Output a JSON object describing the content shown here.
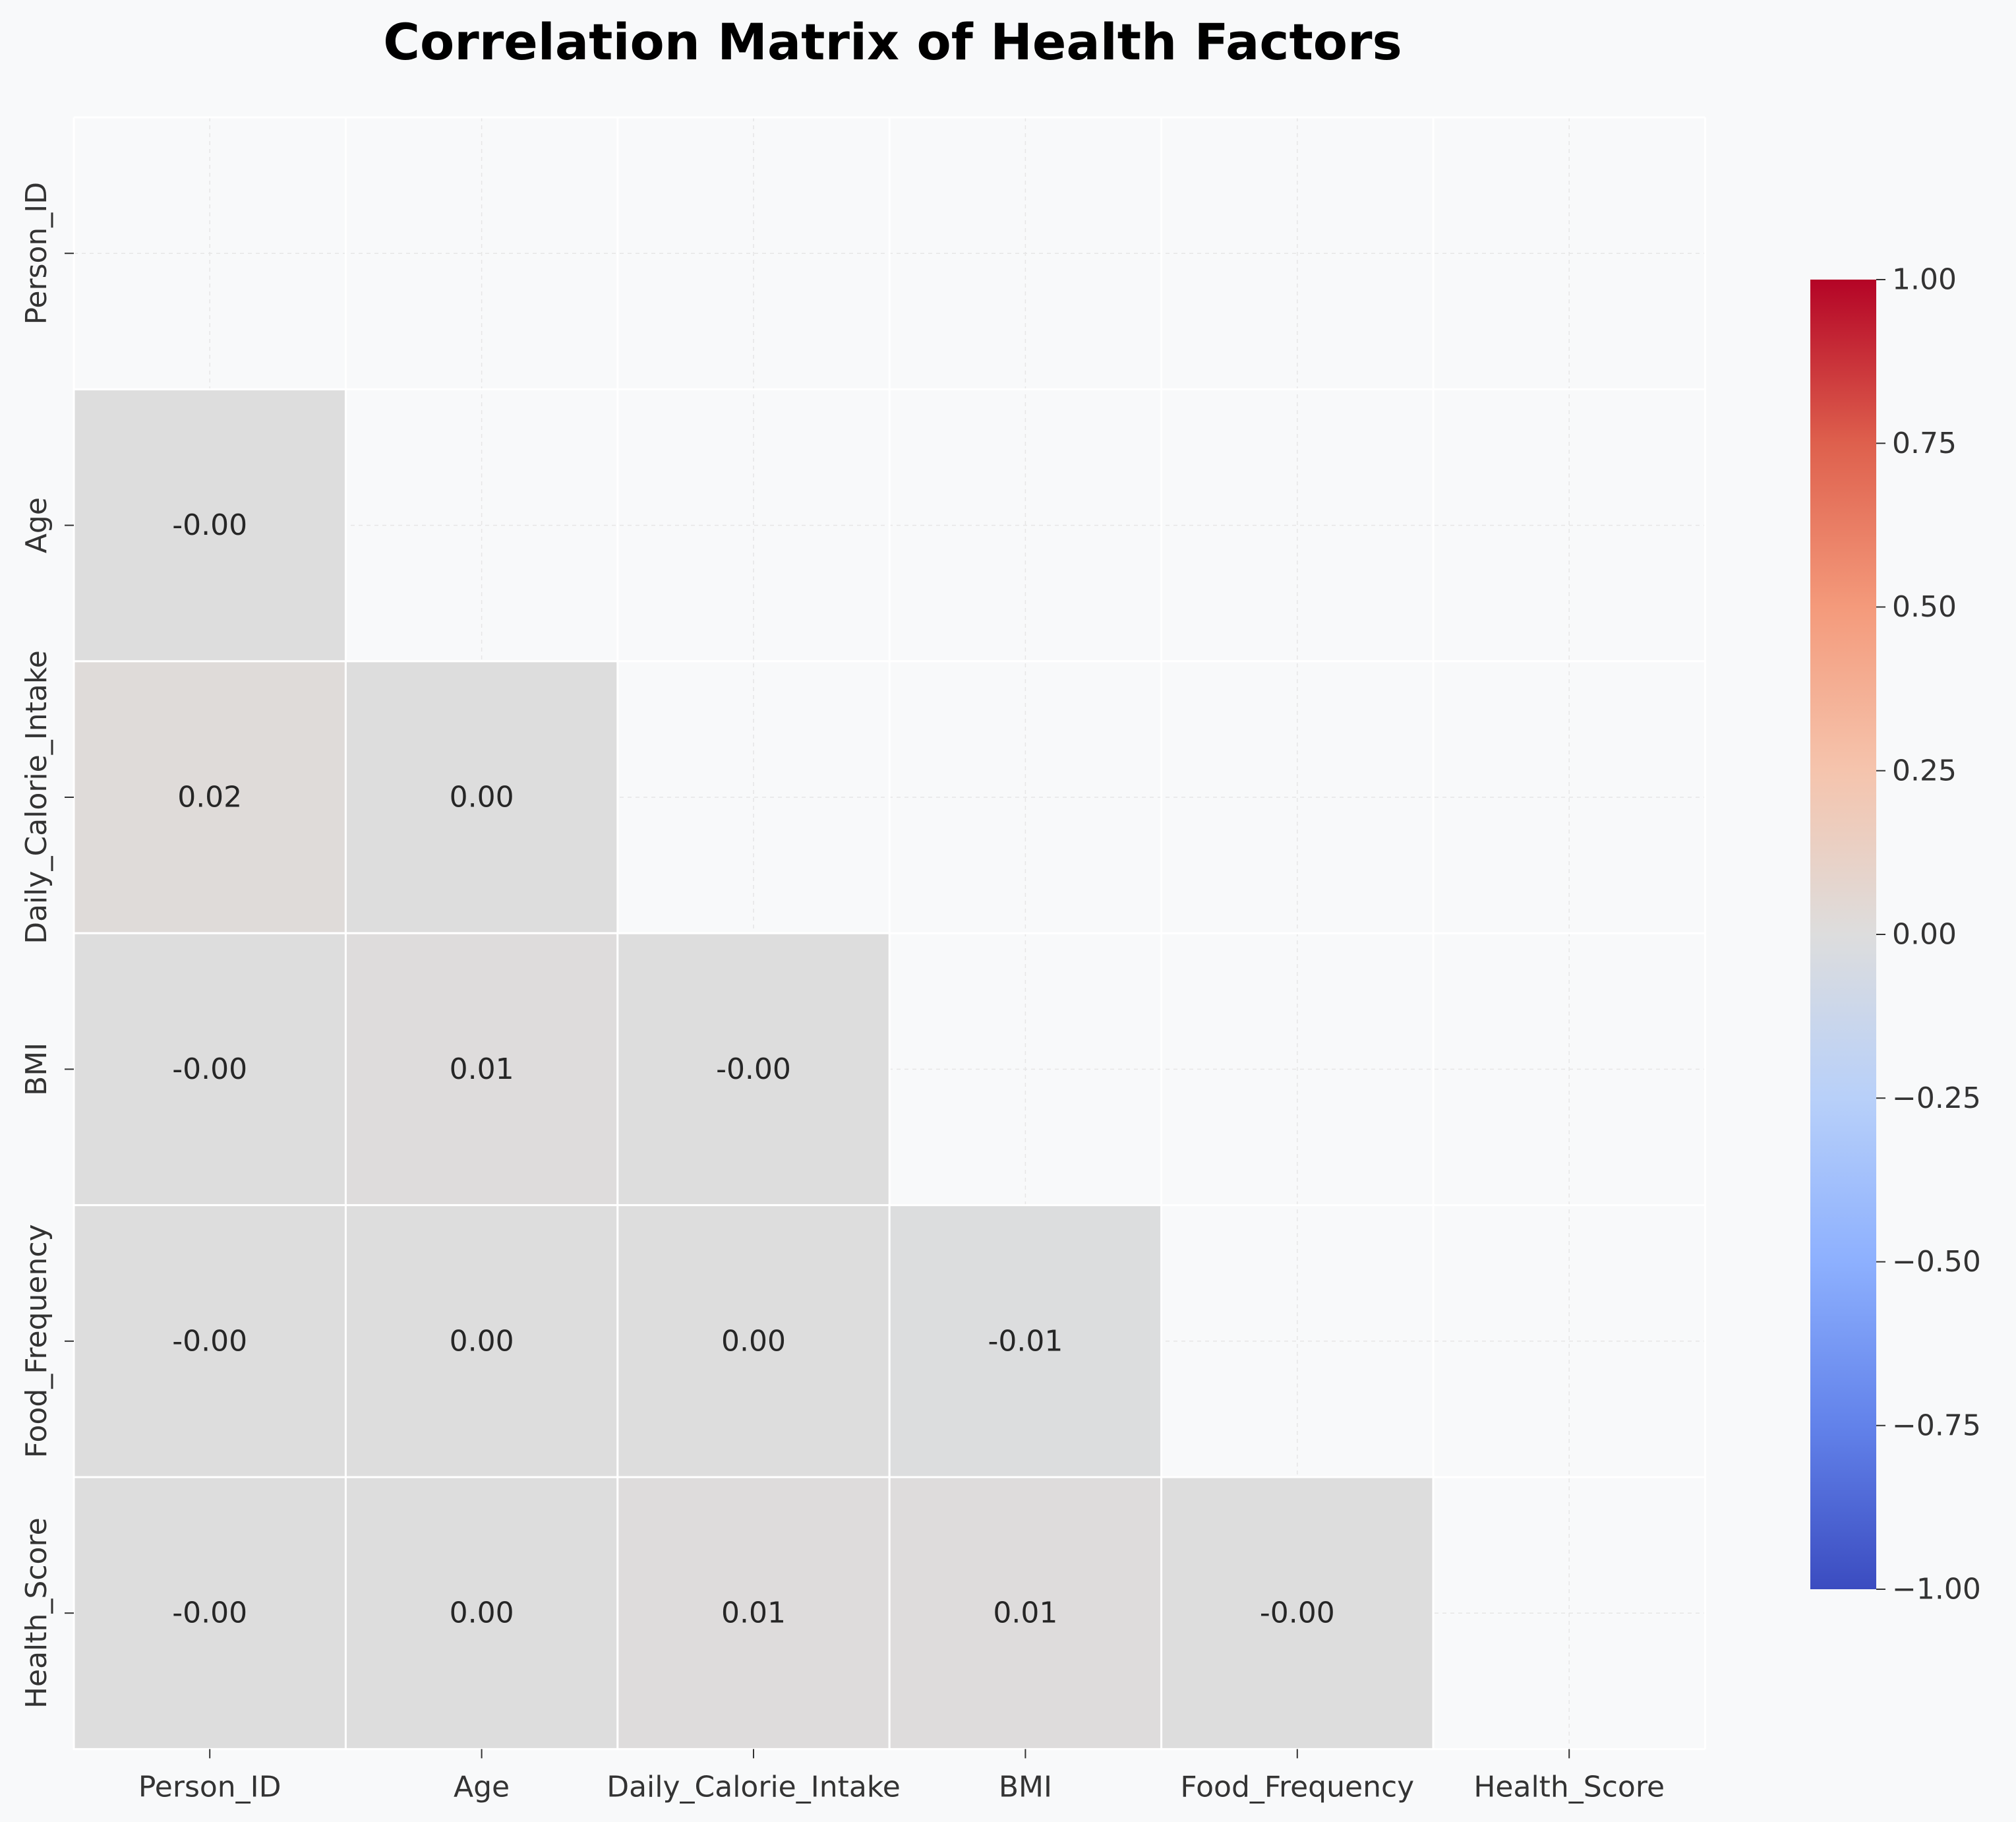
{
  "chart_data": {
    "type": "heatmap",
    "title": "Correlation Matrix of Health Factors",
    "xlabel": "",
    "ylabel": "",
    "variables": [
      "Person_ID",
      "Age",
      "Daily_Calorie_Intake",
      "BMI",
      "Food_Frequency",
      "Health_Score"
    ],
    "mask": "upper-triangle-including-diagonal",
    "colormap": "coolwarm",
    "vmin": -1.0,
    "vmax": 1.0,
    "grid": true,
    "colorbar": {
      "placement": "right",
      "ticks": [
        1.0,
        0.75,
        0.5,
        0.25,
        0.0,
        -0.25,
        -0.5,
        -0.75,
        -1.0
      ],
      "tick_labels": [
        "1.00",
        "0.75",
        "0.50",
        "0.25",
        "0.00",
        "−0.25",
        "−0.50",
        "−0.75",
        "−1.00"
      ]
    },
    "cells": [
      {
        "row": "Age",
        "col": "Person_ID",
        "value": -0.002,
        "label": "-0.00"
      },
      {
        "row": "Daily_Calorie_Intake",
        "col": "Person_ID",
        "value": 0.02,
        "label": "0.02"
      },
      {
        "row": "Daily_Calorie_Intake",
        "col": "Age",
        "value": 0.001,
        "label": "0.00"
      },
      {
        "row": "BMI",
        "col": "Person_ID",
        "value": -0.002,
        "label": "-0.00"
      },
      {
        "row": "BMI",
        "col": "Age",
        "value": 0.006,
        "label": "0.01"
      },
      {
        "row": "BMI",
        "col": "Daily_Calorie_Intake",
        "value": -0.002,
        "label": "-0.00"
      },
      {
        "row": "Food_Frequency",
        "col": "Person_ID",
        "value": -0.002,
        "label": "-0.00"
      },
      {
        "row": "Food_Frequency",
        "col": "Age",
        "value": 0.001,
        "label": "0.00"
      },
      {
        "row": "Food_Frequency",
        "col": "Daily_Calorie_Intake",
        "value": 0.001,
        "label": "0.00"
      },
      {
        "row": "Food_Frequency",
        "col": "BMI",
        "value": -0.006,
        "label": "-0.01"
      },
      {
        "row": "Health_Score",
        "col": "Person_ID",
        "value": -0.002,
        "label": "-0.00"
      },
      {
        "row": "Health_Score",
        "col": "Age",
        "value": 0.001,
        "label": "0.00"
      },
      {
        "row": "Health_Score",
        "col": "Daily_Calorie_Intake",
        "value": 0.007,
        "label": "0.01"
      },
      {
        "row": "Health_Score",
        "col": "BMI",
        "value": 0.006,
        "label": "0.01"
      },
      {
        "row": "Health_Score",
        "col": "Food_Frequency",
        "value": -0.003,
        "label": "-0.00"
      }
    ]
  }
}
